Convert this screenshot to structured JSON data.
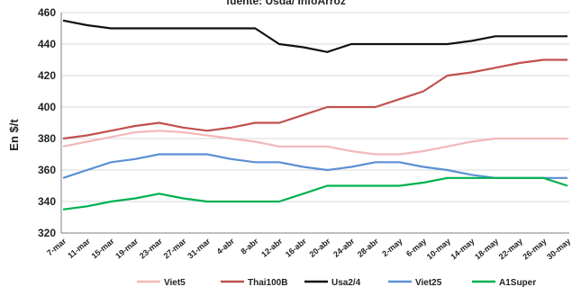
{
  "chart_data": {
    "type": "line",
    "title": "fuente: Usda/ InfoArroz",
    "ylabel": "En $/t",
    "xlabel": "",
    "ylim": [
      320,
      460
    ],
    "yticks": [
      320,
      340,
      360,
      380,
      400,
      420,
      440,
      460
    ],
    "categories": [
      "7-mar",
      "11-mar",
      "15-mar",
      "19-mar",
      "23-mar",
      "27-mar",
      "31-mar",
      "4-abr",
      "8-abr",
      "12-abr",
      "16-abr",
      "20-abr",
      "24-abr",
      "28-abr",
      "2-may",
      "6-may",
      "10-may",
      "14-may",
      "18-may",
      "22-may",
      "26-may",
      "30-may"
    ],
    "grid": true,
    "legend_position": "bottom",
    "series": [
      {
        "name": "Viet5",
        "color": "#f2b8b8",
        "values": [
          375,
          378,
          381,
          384,
          385,
          384,
          382,
          380,
          378,
          375,
          375,
          375,
          372,
          370,
          370,
          372,
          375,
          378,
          380,
          380,
          380,
          380
        ]
      },
      {
        "name": "Thai100B",
        "color": "#c0504d",
        "values": [
          380,
          382,
          385,
          388,
          390,
          387,
          385,
          387,
          390,
          390,
          395,
          400,
          400,
          400,
          405,
          410,
          420,
          422,
          425,
          428,
          430,
          430
        ]
      },
      {
        "name": "Usa2/4",
        "color": "#111111",
        "values": [
          455,
          452,
          450,
          450,
          450,
          450,
          450,
          450,
          450,
          440,
          438,
          435,
          440,
          440,
          440,
          440,
          440,
          442,
          445,
          445,
          445,
          445
        ]
      },
      {
        "name": "Viet25",
        "color": "#5b8fd6",
        "values": [
          355,
          360,
          365,
          367,
          370,
          370,
          370,
          367,
          365,
          365,
          362,
          360,
          362,
          365,
          365,
          362,
          360,
          357,
          355,
          355,
          355,
          355
        ]
      },
      {
        "name": "A1Super",
        "color": "#00b050",
        "values": [
          335,
          337,
          340,
          342,
          345,
          342,
          340,
          340,
          340,
          340,
          345,
          350,
          350,
          350,
          350,
          352,
          355,
          355,
          355,
          355,
          355,
          350
        ]
      }
    ]
  }
}
